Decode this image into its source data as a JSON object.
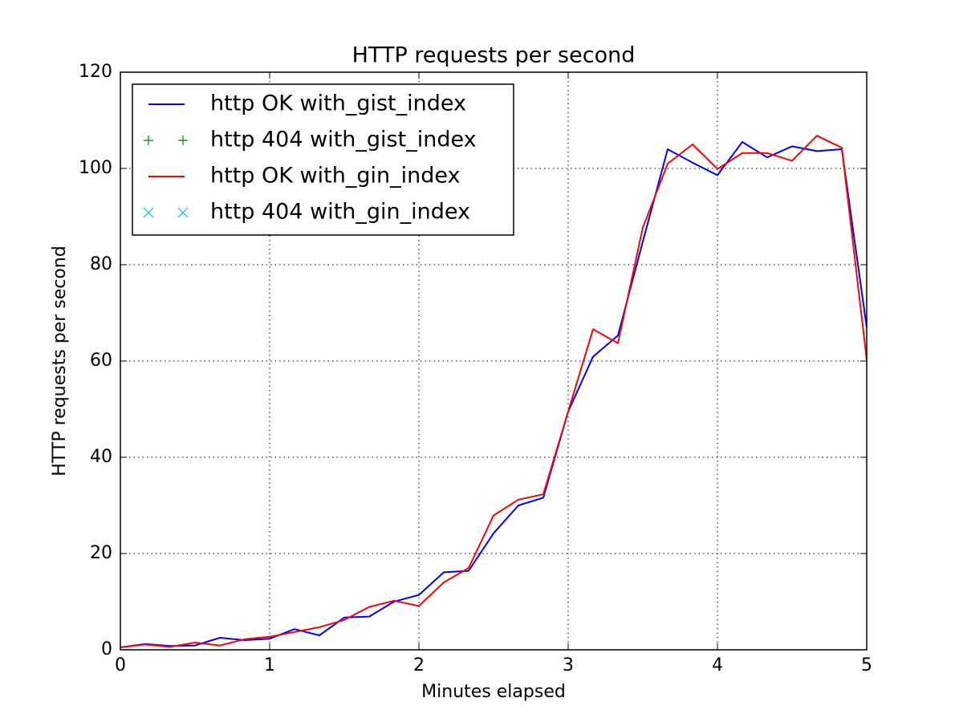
{
  "chart_data": {
    "type": "line",
    "title": "HTTP requests per second",
    "xlabel": "Minutes elapsed",
    "ylabel": "HTTP requests per second",
    "x": [
      0,
      0.1667,
      0.3333,
      0.5,
      0.6667,
      0.8333,
      1,
      1.1667,
      1.3333,
      1.5,
      1.6667,
      1.8333,
      2,
      2.1667,
      2.3333,
      2.5,
      2.6667,
      2.8333,
      3,
      3.1667,
      3.3333,
      3.5,
      3.6667,
      3.8333,
      4,
      4.1667,
      4.3333,
      4.5,
      4.6667,
      4.8333,
      5
    ],
    "series": [
      {
        "name": "http OK with_gist_index",
        "color": "#0000ff",
        "marker": "line",
        "values": [
          0.5,
          1.2,
          0.8,
          0.9,
          2.5,
          2.0,
          2.3,
          4.3,
          3.0,
          6.7,
          6.9,
          10.0,
          11.4,
          16.1,
          16.4,
          24.2,
          30.0,
          31.6,
          49.5,
          60.9,
          65.3,
          84.8,
          104.0,
          101.2,
          98.6,
          105.5,
          102.3,
          104.6,
          103.6,
          104.0,
          67.0
        ]
      },
      {
        "name": "http 404 with_gist_index",
        "color": "#008000",
        "marker": "plus",
        "values": [
          null,
          null,
          null,
          null,
          null,
          null,
          null,
          null,
          null,
          null,
          null,
          null,
          null,
          null,
          null,
          null,
          null,
          null,
          null,
          null,
          null,
          null,
          null,
          null,
          null,
          null,
          null,
          null,
          null,
          null,
          null
        ]
      },
      {
        "name": "http OK with_gin_index",
        "color": "#ff0000",
        "marker": "line",
        "values": [
          0.5,
          1.1,
          0.6,
          1.5,
          0.9,
          2.2,
          2.7,
          3.7,
          4.7,
          6.2,
          8.9,
          10.2,
          9.1,
          14.0,
          17.0,
          27.9,
          31.2,
          32.3,
          49.5,
          66.6,
          63.7,
          87.7,
          101.0,
          105.0,
          99.9,
          103.2,
          103.2,
          101.6,
          106.8,
          104.3,
          60.3
        ]
      },
      {
        "name": "http 404 with_gin_index",
        "color": "#00bfbf",
        "marker": "cross",
        "values": [
          null,
          null,
          null,
          null,
          null,
          null,
          null,
          null,
          null,
          null,
          null,
          null,
          null,
          null,
          null,
          null,
          null,
          null,
          null,
          null,
          null,
          null,
          null,
          null,
          null,
          null,
          null,
          null,
          null,
          null,
          null
        ]
      }
    ],
    "xlim": [
      0,
      5
    ],
    "xticks": [
      0,
      1,
      2,
      3,
      4,
      5
    ],
    "ylim": [
      0,
      120
    ],
    "yticks": [
      0,
      20,
      40,
      60,
      80,
      100,
      120
    ],
    "grid": true,
    "legend": "upper left"
  }
}
